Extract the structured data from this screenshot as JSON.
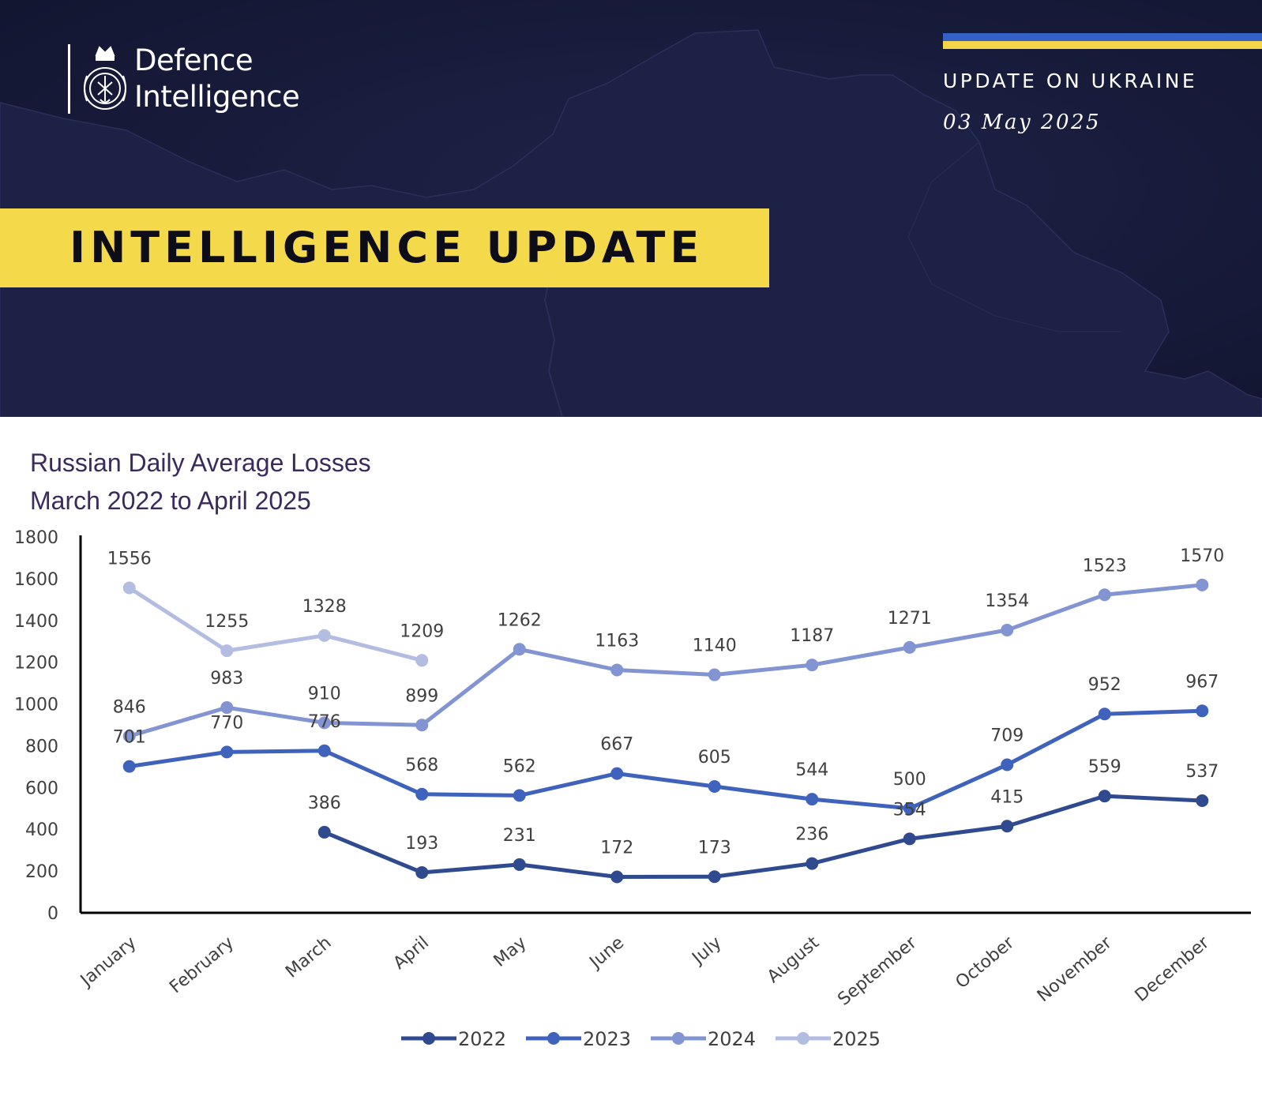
{
  "header": {
    "logo": {
      "line1": "Defence",
      "line2": "Intelligence",
      "crest_icon": "ministry-crest-icon"
    },
    "region_label": "UPDATE ON UKRAINE",
    "date": "03 May 2025",
    "banner": "INTELLIGENCE UPDATE",
    "colors": {
      "background": "#161a3a",
      "banner": "#f4d94a",
      "flag_blue": "#3461c8",
      "flag_yellow": "#f4d449"
    }
  },
  "chart_data": {
    "type": "line",
    "title": "Russian Daily Average Losses",
    "subtitle": "March 2022 to April 2025",
    "categories": [
      "January",
      "February",
      "March",
      "April",
      "May",
      "June",
      "July",
      "August",
      "September",
      "October",
      "November",
      "December"
    ],
    "ylim": [
      0,
      1800
    ],
    "yticks": [
      0,
      200,
      400,
      600,
      800,
      1000,
      1200,
      1400,
      1600,
      1800
    ],
    "grid": false,
    "legend_position": "bottom",
    "series": [
      {
        "name": "2022",
        "color": "#2f4a8f",
        "values": [
          null,
          null,
          386,
          193,
          231,
          172,
          173,
          236,
          354,
          415,
          559,
          537
        ]
      },
      {
        "name": "2023",
        "color": "#3f63bd",
        "values": [
          701,
          770,
          776,
          568,
          562,
          667,
          605,
          544,
          500,
          709,
          952,
          967
        ]
      },
      {
        "name": "2024",
        "color": "#8294d1",
        "values": [
          846,
          983,
          910,
          899,
          1262,
          1163,
          1140,
          1187,
          1271,
          1354,
          1523,
          1570
        ]
      },
      {
        "name": "2025",
        "color": "#b3bde2",
        "values": [
          1556,
          1255,
          1328,
          1209,
          null,
          null,
          null,
          null,
          null,
          null,
          null,
          null
        ]
      }
    ]
  }
}
